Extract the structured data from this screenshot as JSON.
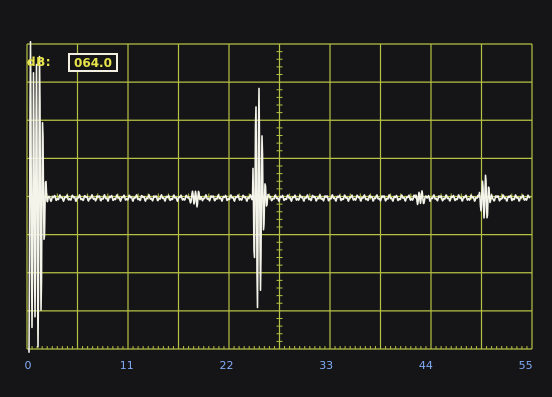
{
  "display": {
    "gain_label": "dB:",
    "gain_value": "064.0"
  },
  "axis": {
    "ticks": [
      {
        "value": 0,
        "label": "0"
      },
      {
        "value": 11,
        "label": "11"
      },
      {
        "value": 22,
        "label": "22"
      },
      {
        "value": 33,
        "label": "33"
      },
      {
        "value": 44,
        "label": "44"
      },
      {
        "value": 55,
        "label": "55"
      }
    ],
    "range": [
      0,
      55.7
    ]
  },
  "colors": {
    "background": "#151517",
    "grid": "#b7c144",
    "trace": "#f4f4ea",
    "tick_label": "#7fa9f2",
    "gain_text": "#e6e34a",
    "gain_box_border": "#f2efe0"
  },
  "waveform": {
    "baseline_amplitude": 0,
    "echoes": [
      {
        "time": 0.3,
        "amplitude": 1.0,
        "description": "initial pulse, saturated"
      },
      {
        "time": 1.3,
        "amplitude": 0.9
      },
      {
        "time": 18.5,
        "amplitude": 0.05
      },
      {
        "time": 25.5,
        "amplitude": 0.72
      },
      {
        "time": 43.5,
        "amplitude": 0.04
      },
      {
        "time": 50.5,
        "amplitude": 0.14
      }
    ]
  }
}
